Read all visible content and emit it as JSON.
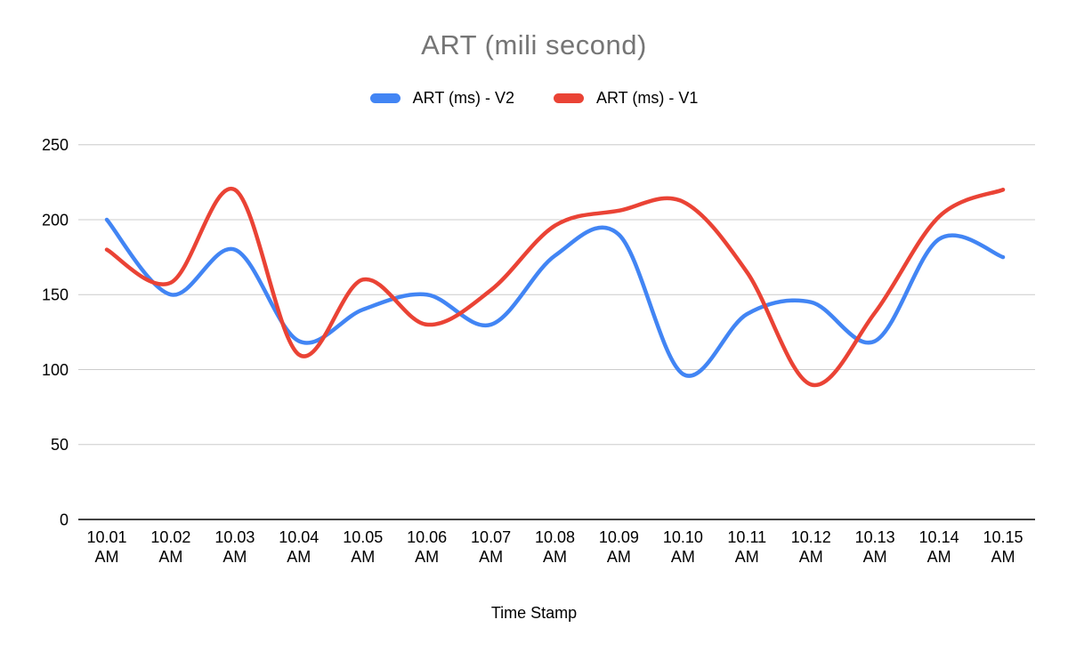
{
  "chart_data": {
    "type": "line",
    "title": "ART (mili second)",
    "xlabel": "Time Stamp",
    "ylabel": "",
    "categories": [
      "10.01 AM",
      "10.02 AM",
      "10.03 AM",
      "10.04 AM",
      "10.05 AM",
      "10.06 AM",
      "10.07 AM",
      "10.08 AM",
      "10.09 AM",
      "10.10 AM",
      "10.11 AM",
      "10.12 AM",
      "10.13 AM",
      "10.14 AM",
      "10.15 AM"
    ],
    "series": [
      {
        "name": "ART (ms) - V2",
        "color": "#4285F4",
        "values": [
          200,
          150,
          180,
          119,
          140,
          150,
          130,
          176,
          190,
          97,
          137,
          145,
          119,
          187,
          175
        ]
      },
      {
        "name": "ART (ms) - V1",
        "color": "#EA4335",
        "values": [
          180,
          158,
          220,
          110,
          160,
          130,
          153,
          196,
          206,
          212,
          165,
          90,
          138,
          202,
          220
        ]
      }
    ],
    "ylim": [
      0,
      250
    ],
    "yticks": [
      0,
      50,
      100,
      150,
      200,
      250
    ],
    "grid": true,
    "smooth": true,
    "legend_position": "top",
    "colors": {
      "title": "#757575",
      "gridline": "#cccccc",
      "axis_line": "#424242",
      "tick_text": "#000000",
      "background": "#ffffff"
    }
  }
}
